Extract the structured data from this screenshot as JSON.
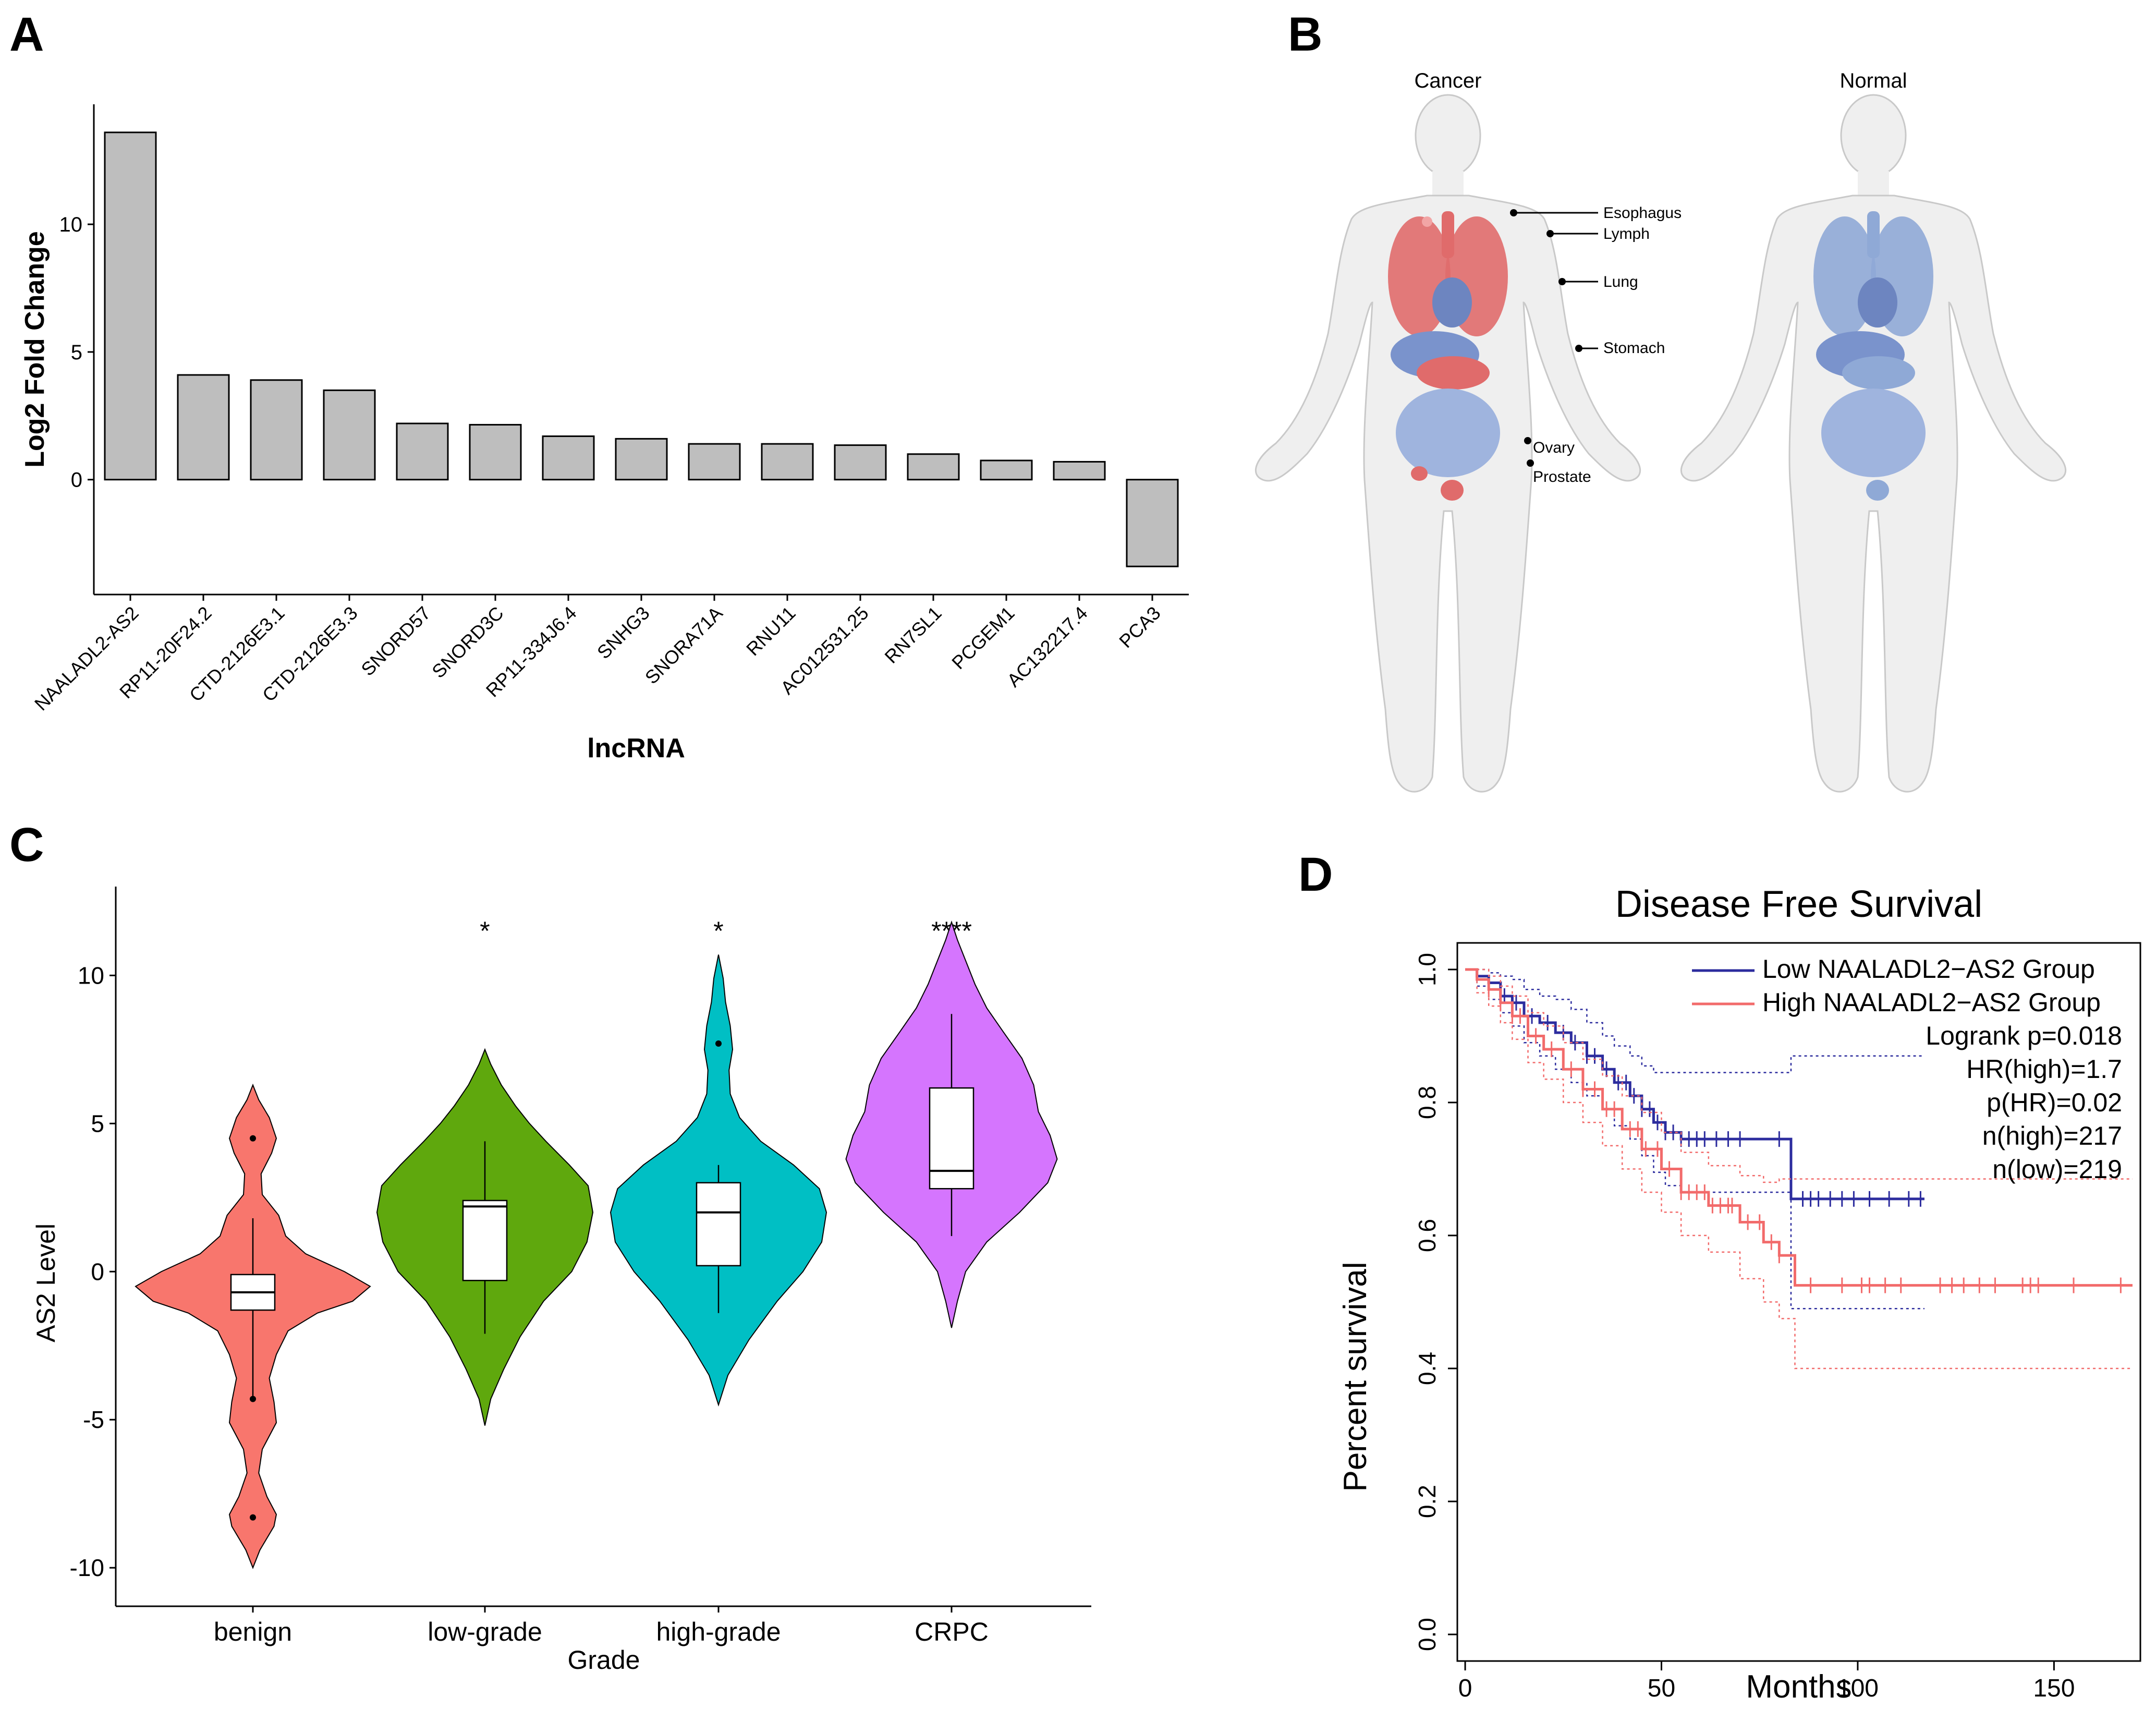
{
  "panel_letters": {
    "a": "A",
    "b": "B",
    "c": "C",
    "d": "D"
  },
  "colors": {
    "bar_fill": "#bebebe",
    "violin": [
      "#f8766d",
      "#5fa80d",
      "#00bfc4",
      "#d575fe"
    ],
    "low_group": "#2c2c9e",
    "high_group": "#f26b6b",
    "body": "#efefef",
    "cancer_organ": "#e06b6b",
    "normal_organ": "#8fa9d6"
  },
  "chart_data": [
    {
      "type": "bar",
      "title": "",
      "xlabel": "lncRNA",
      "ylabel": "Log2 Fold Change",
      "categories": [
        "NAALADL2-AS2",
        "RP11-20F24.2",
        "CTD-2126E3.1",
        "CTD-2126E3.3",
        "SNORD57",
        "SNORD3C",
        "RP11-334J6.4",
        "SNHG3",
        "SNORA71A",
        "RNU11",
        "AC012531.25",
        "RN7SL1",
        "PCGEM1",
        "AC132217.4",
        "PCA3"
      ],
      "values": [
        13.6,
        4.1,
        3.9,
        3.5,
        2.2,
        2.15,
        1.7,
        1.6,
        1.4,
        1.4,
        1.35,
        1.0,
        0.75,
        0.7,
        -3.4
      ],
      "yticks": [
        0,
        5,
        10
      ],
      "ylim": [
        -4.5,
        14.7
      ]
    },
    {
      "type": "violin",
      "title": "",
      "xlabel": "Grade",
      "ylabel": "AS2 Level",
      "categories": [
        "benign",
        "low-grade",
        "high-grade",
        "CRPC"
      ],
      "significance": [
        "",
        "*",
        "*",
        "****"
      ],
      "yticks": [
        -10,
        -5,
        0,
        5,
        10
      ],
      "ylim": [
        -11.3,
        13.0
      ],
      "groups": [
        {
          "name": "benign",
          "min": -10.0,
          "max": 6.3,
          "q1": -1.3,
          "median": -0.7,
          "q3": -0.1,
          "whisker_low": -4.2,
          "whisker_high": 1.8,
          "outliers": [
            4.5,
            -4.3,
            -8.3
          ],
          "profile": [
            [
              -10.0,
              0
            ],
            [
              -9.4,
              0.06
            ],
            [
              -8.6,
              0.18
            ],
            [
              -8.2,
              0.2
            ],
            [
              -7.6,
              0.12
            ],
            [
              -6.8,
              0.05
            ],
            [
              -6.0,
              0.08
            ],
            [
              -5.1,
              0.2
            ],
            [
              -4.4,
              0.18
            ],
            [
              -3.6,
              0.14
            ],
            [
              -2.8,
              0.2
            ],
            [
              -2.0,
              0.3
            ],
            [
              -1.4,
              0.55
            ],
            [
              -1.0,
              0.85
            ],
            [
              -0.5,
              1.0
            ],
            [
              0.0,
              0.78
            ],
            [
              0.6,
              0.45
            ],
            [
              1.2,
              0.28
            ],
            [
              1.9,
              0.22
            ],
            [
              2.6,
              0.08
            ],
            [
              3.3,
              0.07
            ],
            [
              4.0,
              0.16
            ],
            [
              4.5,
              0.2
            ],
            [
              5.2,
              0.14
            ],
            [
              5.8,
              0.05
            ],
            [
              6.3,
              0
            ]
          ]
        },
        {
          "name": "low-grade",
          "min": -5.2,
          "max": 7.5,
          "q1": -0.3,
          "median": 2.2,
          "q3": 2.4,
          "whisker_low": -2.1,
          "whisker_high": 4.4,
          "outliers": [],
          "profile": [
            [
              -5.2,
              0
            ],
            [
              -4.3,
              0.05
            ],
            [
              -3.3,
              0.16
            ],
            [
              -2.2,
              0.3
            ],
            [
              -1.0,
              0.5
            ],
            [
              0.0,
              0.74
            ],
            [
              1.0,
              0.87
            ],
            [
              2.0,
              0.92
            ],
            [
              2.9,
              0.88
            ],
            [
              3.6,
              0.72
            ],
            [
              4.4,
              0.52
            ],
            [
              5.0,
              0.38
            ],
            [
              5.6,
              0.26
            ],
            [
              6.3,
              0.14
            ],
            [
              7.0,
              0.05
            ],
            [
              7.5,
              0
            ]
          ]
        },
        {
          "name": "high-grade",
          "min": -4.5,
          "max": 10.7,
          "q1": 0.2,
          "median": 2.0,
          "q3": 3.0,
          "whisker_low": -1.4,
          "whisker_high": 3.6,
          "outliers": [
            7.7
          ],
          "profile": [
            [
              -4.5,
              0
            ],
            [
              -3.5,
              0.08
            ],
            [
              -2.3,
              0.26
            ],
            [
              -1.0,
              0.5
            ],
            [
              0.0,
              0.72
            ],
            [
              1.0,
              0.88
            ],
            [
              2.0,
              0.92
            ],
            [
              2.8,
              0.86
            ],
            [
              3.6,
              0.64
            ],
            [
              4.4,
              0.36
            ],
            [
              5.2,
              0.18
            ],
            [
              6.0,
              0.1
            ],
            [
              6.8,
              0.09
            ],
            [
              7.5,
              0.12
            ],
            [
              8.3,
              0.1
            ],
            [
              9.1,
              0.06
            ],
            [
              9.9,
              0.04
            ],
            [
              10.7,
              0
            ]
          ]
        },
        {
          "name": "CRPC",
          "min": -1.9,
          "max": 11.8,
          "q1": 2.8,
          "median": 3.4,
          "q3": 6.2,
          "whisker_low": 1.2,
          "whisker_high": 8.7,
          "outliers": [],
          "profile": [
            [
              -1.9,
              0
            ],
            [
              -1.0,
              0.05
            ],
            [
              0.0,
              0.12
            ],
            [
              1.0,
              0.3
            ],
            [
              2.0,
              0.58
            ],
            [
              3.0,
              0.82
            ],
            [
              3.8,
              0.9
            ],
            [
              4.6,
              0.84
            ],
            [
              5.4,
              0.74
            ],
            [
              6.3,
              0.7
            ],
            [
              7.2,
              0.6
            ],
            [
              8.1,
              0.44
            ],
            [
              8.9,
              0.3
            ],
            [
              9.7,
              0.2
            ],
            [
              10.5,
              0.12
            ],
            [
              11.2,
              0.05
            ],
            [
              11.8,
              0
            ]
          ]
        }
      ]
    },
    {
      "type": "line",
      "title": "Disease Free Survival",
      "xlabel": "Months",
      "ylabel": "Percent survival",
      "xticks": [
        0,
        50,
        100,
        150
      ],
      "yticks": [
        0.0,
        0.2,
        0.4,
        0.6,
        0.8,
        1.0
      ],
      "xlim": [
        -2,
        172
      ],
      "ylim": [
        -0.04,
        1.04
      ],
      "legend": [
        "Low NAALADL2−AS2 Group",
        "High NAALADL2−AS2 Group"
      ],
      "stats": [
        "Logrank p=0.018",
        "HR(high)=1.7",
        "p(HR)=0.02",
        "n(high)=217",
        "n(low)=219"
      ],
      "legend_position": "top-right",
      "series": [
        {
          "name": "Low NAALADL2−AS2 Group",
          "x": [
            0,
            3,
            6,
            9,
            12,
            15,
            19,
            23,
            27,
            31,
            35,
            38,
            42,
            45,
            48,
            51,
            55,
            60,
            70,
            83,
            83,
            117
          ],
          "y": [
            1.0,
            0.99,
            0.98,
            0.96,
            0.95,
            0.93,
            0.92,
            0.905,
            0.89,
            0.87,
            0.85,
            0.83,
            0.81,
            0.79,
            0.77,
            0.755,
            0.745,
            0.745,
            0.745,
            0.745,
            0.655,
            0.655
          ],
          "upper": [
            1.0,
            1.0,
            0.995,
            0.99,
            0.985,
            0.97,
            0.96,
            0.955,
            0.94,
            0.92,
            0.9,
            0.885,
            0.87,
            0.855,
            0.845,
            0.845,
            0.845,
            0.845,
            0.845,
            0.845,
            0.87,
            0.87
          ],
          "lower": [
            1.0,
            0.975,
            0.955,
            0.935,
            0.915,
            0.89,
            0.87,
            0.85,
            0.83,
            0.81,
            0.79,
            0.765,
            0.745,
            0.72,
            0.695,
            0.675,
            0.665,
            0.665,
            0.665,
            0.665,
            0.49,
            0.49
          ],
          "censor_x": [
            10,
            13,
            17,
            21,
            25,
            28,
            31,
            33,
            36,
            39,
            41,
            43,
            45,
            47,
            49,
            51,
            53,
            55,
            57,
            59,
            61,
            64,
            67,
            70,
            80,
            86,
            88,
            90,
            93,
            96,
            99,
            103,
            108,
            113,
            116
          ]
        },
        {
          "name": "High NAALADL2−AS2 Group",
          "x": [
            0,
            3,
            6,
            9,
            12,
            16,
            20,
            25,
            30,
            35,
            40,
            45,
            50,
            55,
            62,
            70,
            76,
            80,
            84,
            84,
            170
          ],
          "y": [
            1.0,
            0.985,
            0.97,
            0.95,
            0.93,
            0.9,
            0.88,
            0.85,
            0.82,
            0.79,
            0.76,
            0.73,
            0.7,
            0.665,
            0.645,
            0.62,
            0.59,
            0.57,
            0.57,
            0.525,
            0.525
          ],
          "upper": [
            1.0,
            1.0,
            0.99,
            0.975,
            0.96,
            0.935,
            0.915,
            0.89,
            0.865,
            0.84,
            0.81,
            0.785,
            0.755,
            0.725,
            0.705,
            0.69,
            0.68,
            0.685,
            0.685,
            0.685,
            0.685
          ],
          "lower": [
            1.0,
            0.965,
            0.945,
            0.92,
            0.895,
            0.86,
            0.835,
            0.8,
            0.77,
            0.735,
            0.7,
            0.665,
            0.635,
            0.6,
            0.575,
            0.535,
            0.5,
            0.475,
            0.47,
            0.4,
            0.4
          ],
          "censor_x": [
            6,
            9,
            12,
            14,
            18,
            22,
            27,
            30,
            33,
            36,
            38,
            42,
            44,
            46,
            49,
            52,
            55,
            57,
            59,
            61,
            63,
            65,
            67,
            68,
            72,
            75,
            78,
            80,
            88,
            96,
            101,
            103,
            107,
            111,
            121,
            124,
            127,
            131,
            135,
            142,
            144,
            146,
            155,
            167
          ]
        }
      ]
    }
  ],
  "body_map": {
    "cancer_title": "Cancer",
    "normal_title": "Normal",
    "labels": [
      "Esophagus",
      "Lymph",
      "Lung",
      "Stomach",
      "Ovary",
      "Prostate"
    ]
  }
}
